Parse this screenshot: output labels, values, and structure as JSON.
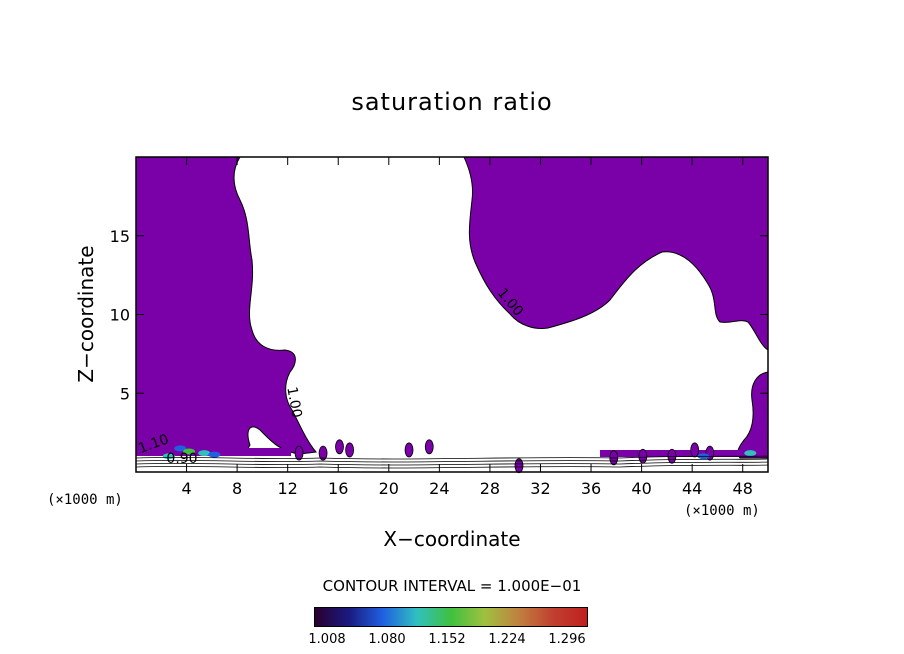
{
  "chart_data": {
    "type": "heatmap",
    "title": "saturation ratio",
    "xlabel": "X−coordinate",
    "ylabel": "Z−coordinate",
    "x_unit_label": "(×1000 m)",
    "xlim": [
      0,
      50
    ],
    "ylim": [
      0,
      20
    ],
    "x_ticks": [
      4,
      8,
      12,
      16,
      20,
      24,
      28,
      32,
      36,
      40,
      44,
      48
    ],
    "y_ticks": [
      5,
      10,
      15
    ],
    "contour_interval_label": "CONTOUR INTERVAL = 1.000E−01",
    "contour_labels": [
      "1.00",
      "1.00",
      "0.90",
      "1.10"
    ],
    "colorbar": {
      "ticks": [
        "1.008",
        "1.080",
        "1.152",
        "1.224",
        "1.296"
      ],
      "colors": [
        "#2a0030",
        "#1a1a80",
        "#2060e0",
        "#30c0c0",
        "#40c040",
        "#a0c040",
        "#c08040",
        "#c04030",
        "#c02020"
      ]
    },
    "fill_color_saturated": "#7a00a8",
    "grid": false,
    "legend": "colorbar-bottom"
  }
}
